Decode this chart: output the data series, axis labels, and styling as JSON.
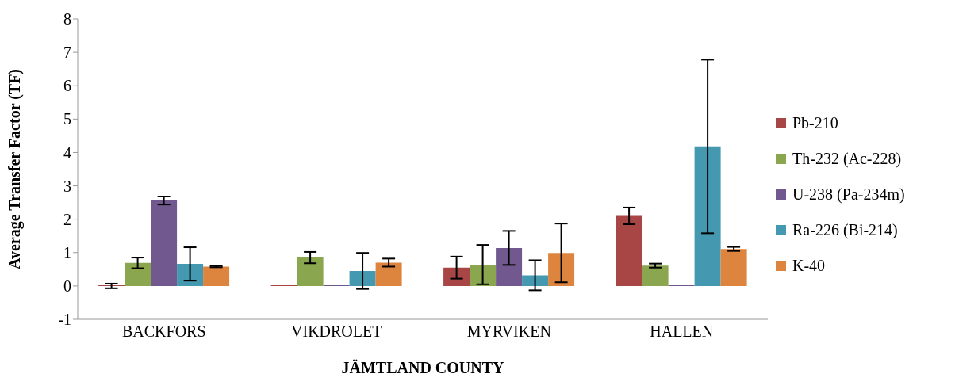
{
  "chart_data": {
    "type": "bar",
    "xlabel": "JÄMTLAND COUNTY",
    "ylabel": "Average Transfer Factor (TF)",
    "categories": [
      "BACKFORS",
      "VIKDROLET",
      "MYRVIKEN",
      "HALLEN"
    ],
    "series": [
      {
        "name": "Pb-210",
        "color": "#a84646",
        "values": [
          0,
          0,
          0.55,
          2.1
        ],
        "errors": [
          0.07,
          null,
          0.33,
          0.25
        ]
      },
      {
        "name": "Th-232 (Ac-228)",
        "color": "#8aa64e",
        "values": [
          0.69,
          0.85,
          0.64,
          0.61
        ],
        "errors": [
          0.16,
          0.17,
          0.59,
          0.06
        ]
      },
      {
        "name": "U-238 (Pa-234m)",
        "color": "#71598f",
        "values": [
          2.56,
          0,
          1.14,
          0
        ],
        "errors": [
          0.12,
          null,
          0.51,
          null
        ]
      },
      {
        "name": "Ra-226 (Bi-214)",
        "color": "#4499b0",
        "values": [
          0.66,
          0.45,
          0.32,
          4.18
        ],
        "errors": [
          0.5,
          0.54,
          0.45,
          2.6
        ]
      },
      {
        "name": "K-40",
        "color": "#dd843e",
        "values": [
          0.58,
          0.7,
          0.99,
          1.11
        ],
        "errors": [
          0.02,
          0.12,
          0.88,
          0.06
        ]
      }
    ],
    "ylim": [
      -1,
      8
    ],
    "yticks": [
      -1,
      0,
      1,
      2,
      3,
      4,
      5,
      6,
      7,
      8
    ],
    "grid": false,
    "legend": "right"
  }
}
